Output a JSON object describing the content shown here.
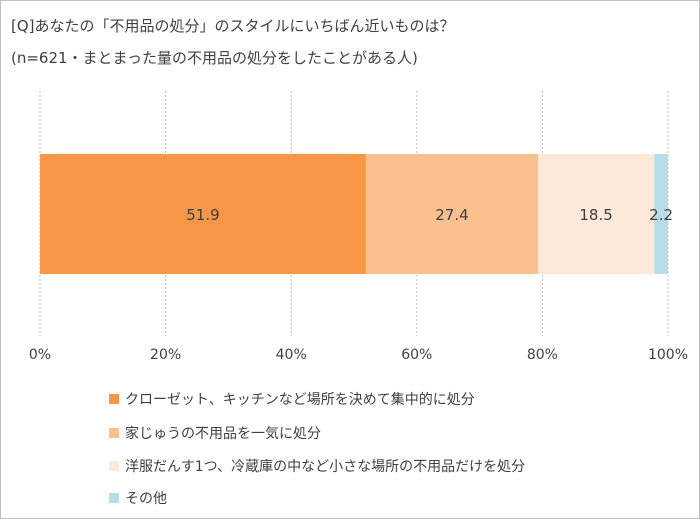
{
  "title_line1": "[Q]あなたの「不用品の処分」のスタイルにいちばん近いものは？",
  "title_line2": "(n=621・まとまった量の不用品の処分をしたことがある人)",
  "chart_data": {
    "type": "bar",
    "orientation": "horizontal-stacked-100",
    "xlim": [
      0,
      100
    ],
    "ticks": [
      "0%",
      "20%",
      "40%",
      "60%",
      "80%",
      "100%"
    ],
    "tick_values": [
      0,
      20,
      40,
      60,
      80,
      100
    ],
    "grid": "vertical dashed",
    "legend_position": "bottom",
    "series": [
      {
        "name": "クローゼット、キッチンなど場所を決めて集中的に処分",
        "value": 51.9,
        "label": "51.9",
        "color": "#F79646"
      },
      {
        "name": "家じゅうの不用品を一気に処分",
        "value": 27.4,
        "label": "27.4",
        "color": "#FAC090"
      },
      {
        "name": "洋服だんす1つ、冷蔵庫の中など小さな場所の不用品だけを処分",
        "value": 18.5,
        "label": "18.5",
        "color": "#FDE9D9"
      },
      {
        "name": "その他",
        "value": 2.2,
        "label": "2.2",
        "color": "#B7DEE8"
      }
    ]
  }
}
